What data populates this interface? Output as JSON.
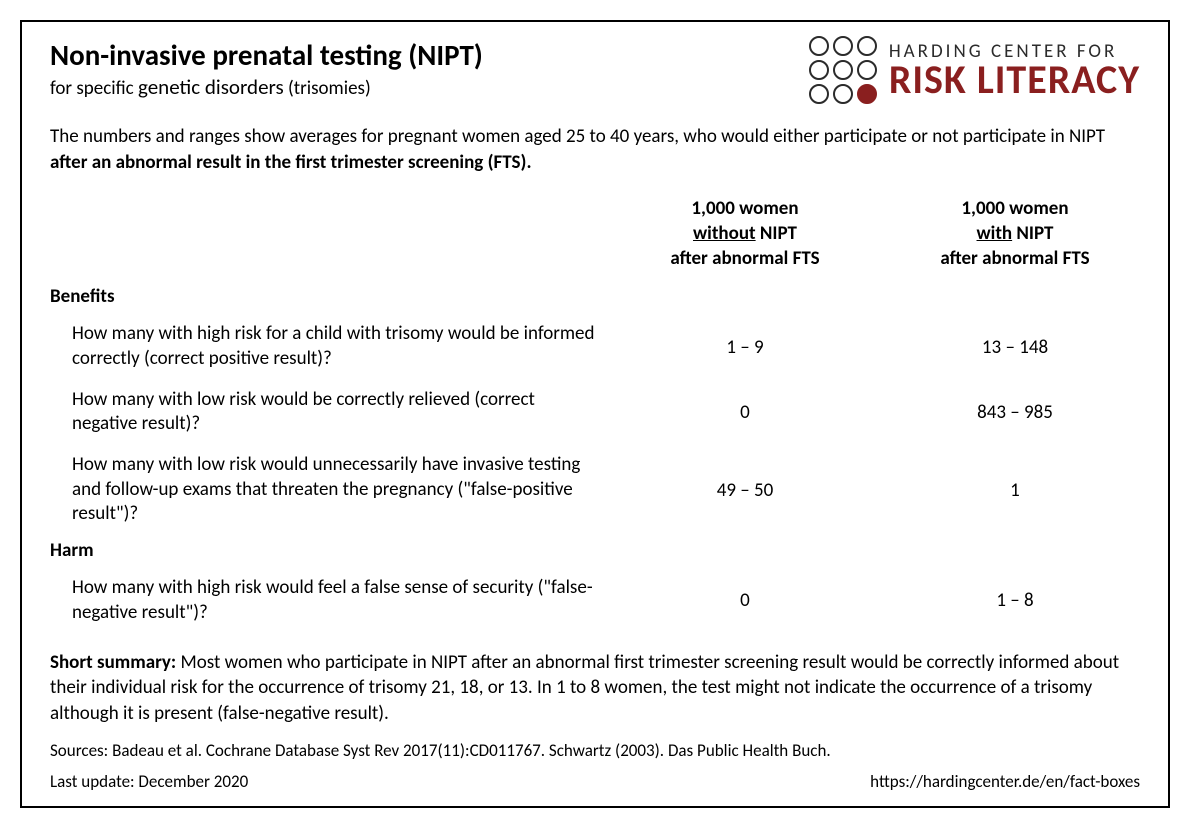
{
  "colors": {
    "border": "#000000",
    "text": "#000000",
    "logo_red": "#8a1f1f",
    "logo_gray": "#2b2b2b",
    "background": "#ffffff"
  },
  "typography": {
    "title_fontsize": 29,
    "body_fontsize": 19,
    "logo_bottom_fontsize": 40,
    "logo_top_fontsize": 19,
    "sources_fontsize": 17
  },
  "title": "Non-invasive prenatal testing (NIPT)",
  "subtitle_pre": "for specific ",
  "subtitle_mid": "genetic disorders",
  "subtitle_post": " (trisomies)",
  "logo": {
    "top": "HARDING CENTER FOR",
    "bottom": "RISK LITERACY",
    "grid": [
      [
        "o",
        "o",
        "o"
      ],
      [
        "o",
        "o",
        "o"
      ],
      [
        "o",
        "o",
        "f"
      ]
    ]
  },
  "intro_pre": "The numbers and ranges show averages for pregnant women aged 25 to 40 years, who would either participate or not participate in NIPT ",
  "intro_bold": "after an abnormal result in the first trimester screening (FTS).",
  "columns": {
    "col1": {
      "line1": "1,000 women",
      "emph": "without",
      "line2_rest": " NIPT",
      "line3": "after abnormal FTS"
    },
    "col2": {
      "line1": "1,000 women",
      "emph": "with",
      "line2_rest": " NIPT",
      "line3": "after abnormal FTS"
    }
  },
  "sections": [
    {
      "label": "Benefits",
      "rows": [
        {
          "q": "How many with high risk for a child with trisomy would be informed correctly (correct positive result)?",
          "v1": "1 – 9",
          "v2": "13 – 148"
        },
        {
          "q": "How many with low risk would be correctly relieved (correct negative result)?",
          "v1": "0",
          "v2": "843 – 985"
        },
        {
          "q": "How many with low risk would unnecessarily have invasive testing and follow-up exams that threaten the pregnancy (\"false-positive result\")?",
          "v1": "49 – 50",
          "v2": "1"
        }
      ]
    },
    {
      "label": "Harm",
      "rows": [
        {
          "q": "How many with high risk would feel a false sense of security (\"false-negative result\")?",
          "v1": "0",
          "v2": "1 – 8"
        }
      ]
    }
  ],
  "summary_label": "Short summary: ",
  "summary_text": "Most women who participate in NIPT after an abnormal first trimester screening result would be correctly informed about their individual risk for the occurrence of trisomy 21, 18, or 13. In 1 to 8 women, the test might not indicate the occurrence of a trisomy although it is present (false-negative result).",
  "sources": "Sources: Badeau et al. Cochrane Database Syst Rev 2017(11):CD011767. Schwartz (2003). Das Public Health Buch.",
  "footer": {
    "left": "Last update: December 2020",
    "right": "https://hardingcenter.de/en/fact-boxes"
  }
}
